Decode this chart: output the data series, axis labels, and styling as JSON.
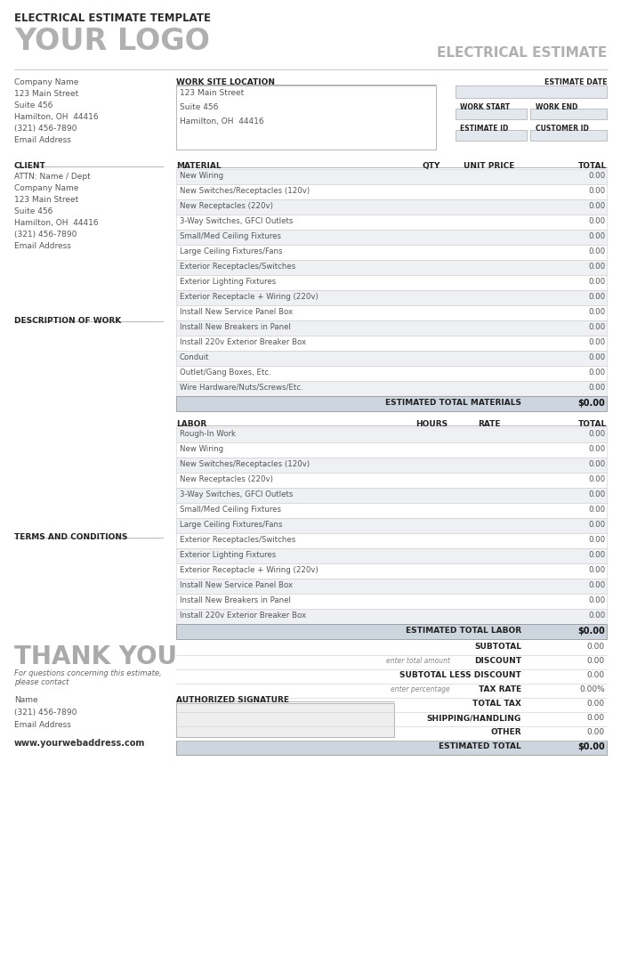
{
  "title": "ELECTRICAL ESTIMATE TEMPLATE",
  "logo": "YOUR LOGO",
  "doc_title": "ELECTRICAL ESTIMATE",
  "bg_color": "#ffffff",
  "section_header_bg": "#cdd5de",
  "row_bg_light": "#eef0f3",
  "row_bg_white": "#ffffff",
  "company_info": [
    "Company Name",
    "123 Main Street",
    "Suite 456",
    "Hamilton, OH  44416",
    "(321) 456-7890",
    "Email Address"
  ],
  "work_site_label": "WORK SITE LOCATION",
  "work_site_lines": [
    "123 Main Street",
    "Suite 456",
    "Hamilton, OH  44416"
  ],
  "estimate_date_label": "ESTIMATE DATE",
  "work_start_label": "WORK START",
  "work_end_label": "WORK END",
  "estimate_id_label": "ESTIMATE ID",
  "customer_id_label": "CUSTOMER ID",
  "client_label": "CLIENT",
  "client_info": [
    "ATTN: Name / Dept",
    "Company Name",
    "123 Main Street",
    "Suite 456",
    "Hamilton, OH  44416",
    "(321) 456-7890",
    "Email Address"
  ],
  "desc_of_work_label": "DESCRIPTION OF WORK",
  "material_label": "MATERIAL",
  "qty_label": "QTY",
  "unit_price_label": "UNIT PRICE",
  "total_label": "TOTAL",
  "material_items": [
    "New Wiring",
    "New Switches/Receptacles (120v)",
    "New Receptacles (220v)",
    "3-Way Switches, GFCI Outlets",
    "Small/Med Ceiling Fixtures",
    "Large Ceiling Fixtures/Fans",
    "Exterior Receptacles/Switches",
    "Exterior Lighting Fixtures",
    "Exterior Receptacle + Wiring (220v)",
    "Install New Service Panel Box",
    "Install New Breakers in Panel",
    "Install 220v Exterior Breaker Box",
    "Conduit",
    "Outlet/Gang Boxes, Etc.",
    "Wire Hardware/Nuts/Screws/Etc."
  ],
  "est_total_materials_label": "ESTIMATED TOTAL MATERIALS",
  "est_total_materials_value": "$0.00",
  "labor_label": "LABOR",
  "hours_label": "HOURS",
  "rate_label": "RATE",
  "labor_items": [
    "Rough-In Work",
    "New Wiring",
    "New Switches/Receptacles (120v)",
    "New Receptacles (220v)",
    "3-Way Switches, GFCI Outlets",
    "Small/Med Ceiling Fixtures",
    "Large Ceiling Fixtures/Fans",
    "Exterior Receptacles/Switches",
    "Exterior Lighting Fixtures",
    "Exterior Receptacle + Wiring (220v)",
    "Install New Service Panel Box",
    "Install New Breakers in Panel",
    "Install 220v Exterior Breaker Box"
  ],
  "est_total_labor_label": "ESTIMATED TOTAL LABOR",
  "est_total_labor_value": "$0.00",
  "subtotal_label": "SUBTOTAL",
  "subtotal_value": "0.00",
  "discount_label": "DISCOUNT",
  "discount_note": "enter total amount",
  "subtotal_less_discount_label": "SUBTOTAL LESS DISCOUNT",
  "subtotal_less_discount_value": "0.00",
  "tax_rate_label": "TAX RATE",
  "tax_rate_note": "enter percentage",
  "tax_rate_value": "0.00%",
  "total_tax_label": "TOTAL TAX",
  "total_tax_value": "0.00",
  "shipping_label": "SHIPPING/HANDLING",
  "shipping_value": "0.00",
  "other_label": "OTHER",
  "other_value": "0.00",
  "estimated_total_label": "ESTIMATED TOTAL",
  "estimated_total_value": "$0.00",
  "thank_you": "THANK YOU",
  "thank_you_note": "For questions concerning this estimate,\nplease contact",
  "footer_name": "Name",
  "footer_phone": "(321) 456-7890",
  "footer_email": "Email Address",
  "footer_web": "www.yourwebaddress.com",
  "terms_label": "TERMS AND CONDITIONS",
  "auth_sig_label": "AUTHORIZED SIGNATURE"
}
